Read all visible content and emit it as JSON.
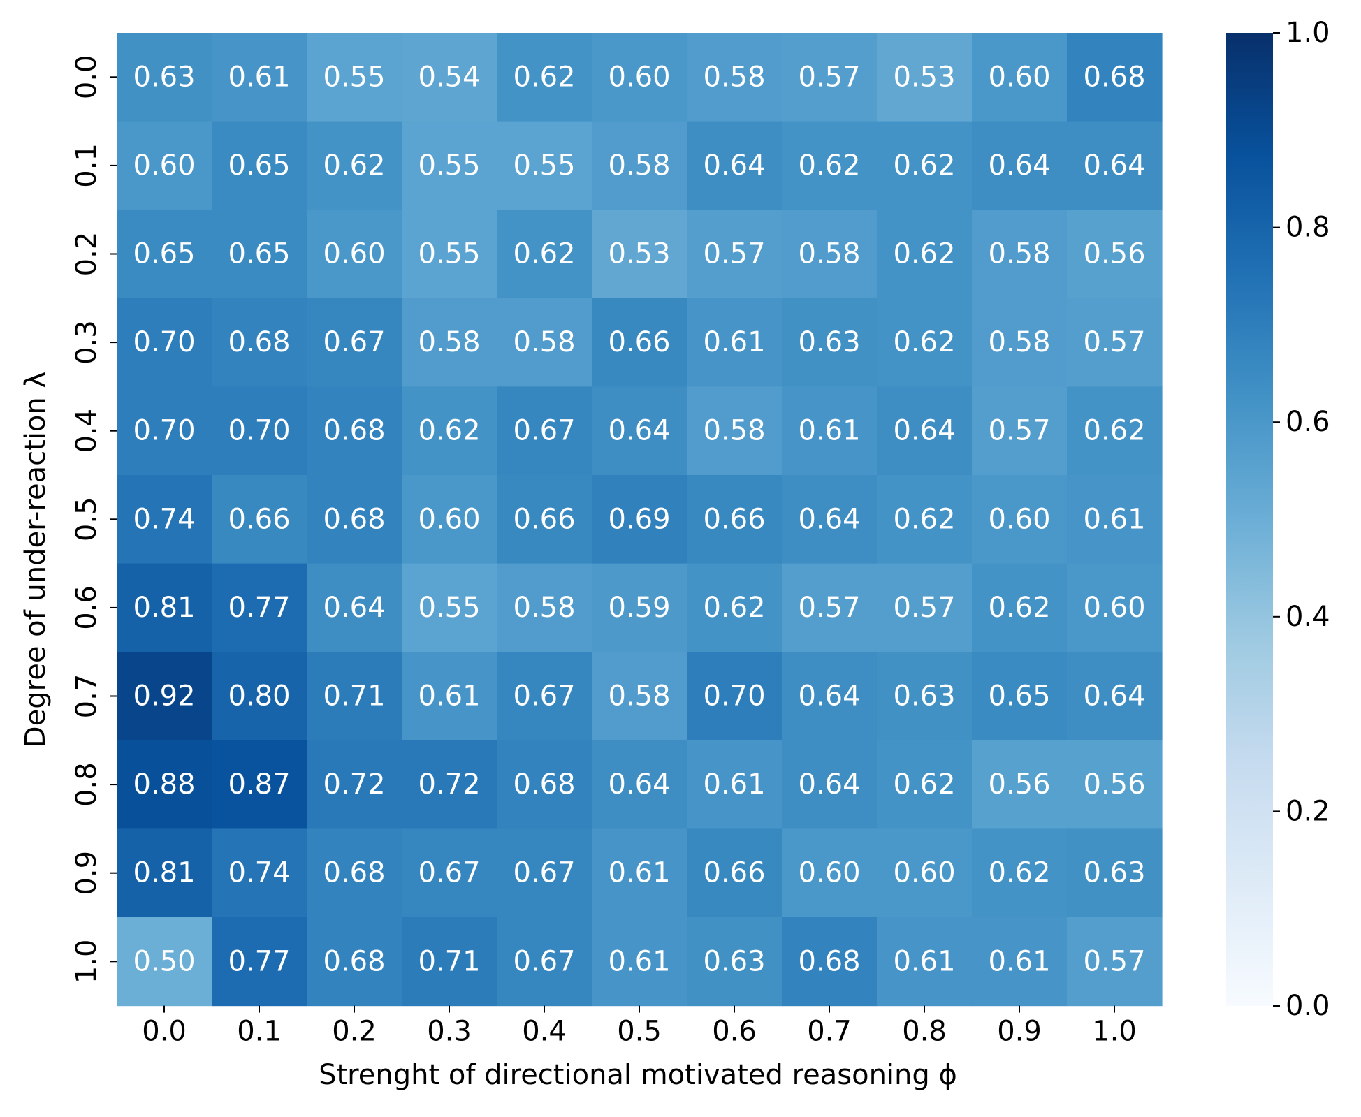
{
  "chart_data": {
    "type": "heatmap",
    "xlabel": "Strenght of directional motivated reasoning ϕ",
    "ylabel": "Degree of under-reaction λ",
    "x_categories": [
      "0.0",
      "0.1",
      "0.2",
      "0.3",
      "0.4",
      "0.5",
      "0.6",
      "0.7",
      "0.8",
      "0.9",
      "1.0"
    ],
    "y_categories": [
      "0.0",
      "0.1",
      "0.2",
      "0.3",
      "0.4",
      "0.5",
      "0.6",
      "0.7",
      "0.8",
      "0.9",
      "1.0"
    ],
    "values": [
      [
        0.63,
        0.61,
        0.55,
        0.54,
        0.62,
        0.6,
        0.58,
        0.57,
        0.53,
        0.6,
        0.68
      ],
      [
        0.6,
        0.65,
        0.62,
        0.55,
        0.55,
        0.58,
        0.64,
        0.62,
        0.62,
        0.64,
        0.64
      ],
      [
        0.65,
        0.65,
        0.6,
        0.55,
        0.62,
        0.53,
        0.57,
        0.58,
        0.62,
        0.58,
        0.56
      ],
      [
        0.7,
        0.68,
        0.67,
        0.58,
        0.58,
        0.66,
        0.61,
        0.63,
        0.62,
        0.58,
        0.57
      ],
      [
        0.7,
        0.7,
        0.68,
        0.62,
        0.67,
        0.64,
        0.58,
        0.61,
        0.64,
        0.57,
        0.62
      ],
      [
        0.74,
        0.66,
        0.68,
        0.6,
        0.66,
        0.69,
        0.66,
        0.64,
        0.62,
        0.6,
        0.61
      ],
      [
        0.81,
        0.77,
        0.64,
        0.55,
        0.58,
        0.59,
        0.62,
        0.57,
        0.57,
        0.62,
        0.6
      ],
      [
        0.92,
        0.8,
        0.71,
        0.61,
        0.67,
        0.58,
        0.7,
        0.64,
        0.63,
        0.65,
        0.64
      ],
      [
        0.88,
        0.87,
        0.72,
        0.72,
        0.68,
        0.64,
        0.61,
        0.64,
        0.62,
        0.56,
        0.56
      ],
      [
        0.81,
        0.74,
        0.68,
        0.67,
        0.67,
        0.61,
        0.66,
        0.6,
        0.6,
        0.62,
        0.63
      ],
      [
        0.5,
        0.77,
        0.68,
        0.71,
        0.67,
        0.61,
        0.63,
        0.68,
        0.61,
        0.61,
        0.57
      ]
    ],
    "colorbar": {
      "colormap": "Blues",
      "range": [
        0.0,
        1.0
      ],
      "ticks": [
        "0.0",
        "0.2",
        "0.4",
        "0.6",
        "0.8",
        "1.0"
      ]
    },
    "value_format": "2 decimals",
    "cell_text_color": "#ffffff",
    "grid": false
  }
}
